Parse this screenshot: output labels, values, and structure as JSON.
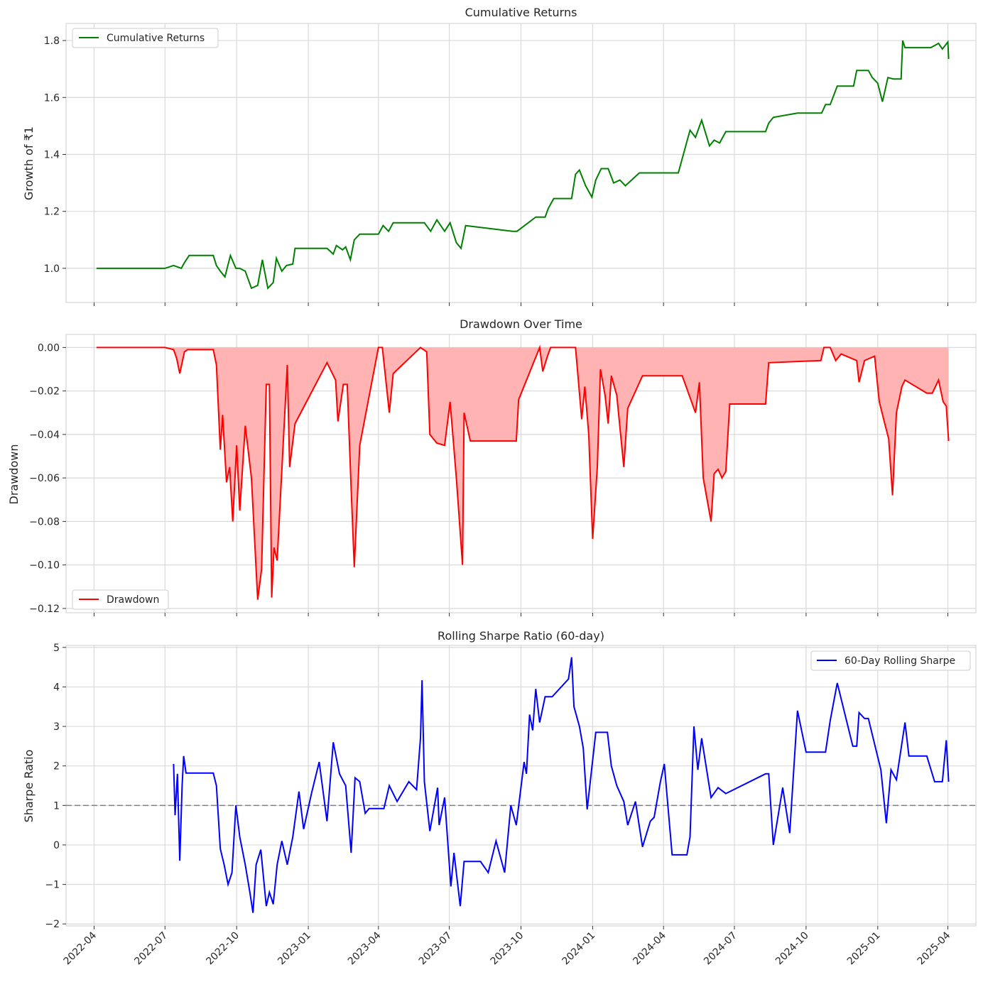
{
  "chart_data": [
    {
      "type": "line",
      "title": "Cumulative Returns",
      "xlabel": "",
      "ylabel": "Growth of ₹1",
      "ylim": [
        0.88,
        1.86
      ],
      "yticks": [
        "1.0",
        "1.2",
        "1.4",
        "1.6",
        "1.8"
      ],
      "grid": true,
      "legend_position": "upper left",
      "series": [
        {
          "name": "Cumulative Returns",
          "color": "#008000",
          "x": [
            "2022-04-04",
            "2022-07-01",
            "2022-07-12",
            "2022-07-22",
            "2022-07-26",
            "2022-08-01",
            "2022-09-01",
            "2022-09-05",
            "2022-09-10",
            "2022-09-16",
            "2022-09-23",
            "2022-09-30",
            "2022-10-05",
            "2022-10-12",
            "2022-10-20",
            "2022-10-28",
            "2022-11-03",
            "2022-11-10",
            "2022-11-17",
            "2022-11-21",
            "2022-11-28",
            "2022-12-04",
            "2022-12-12",
            "2022-12-15",
            "2023-01-25",
            "2023-02-02",
            "2023-02-06",
            "2023-02-14",
            "2023-02-18",
            "2023-02-24",
            "2023-03-01",
            "2023-03-08",
            "2023-03-15",
            "2023-04-01",
            "2023-04-07",
            "2023-04-14",
            "2023-04-20",
            "2023-05-30",
            "2023-06-07",
            "2023-06-15",
            "2023-06-25",
            "2023-07-02",
            "2023-07-10",
            "2023-07-16",
            "2023-07-22",
            "2023-09-20",
            "2023-09-26",
            "2023-10-20",
            "2023-11-01",
            "2023-11-05",
            "2023-11-12",
            "2023-12-05",
            "2023-12-10",
            "2023-12-15",
            "2023-12-23",
            "2023-12-31",
            "2024-01-05",
            "2024-01-12",
            "2024-01-21",
            "2024-01-28",
            "2024-02-05",
            "2024-02-12",
            "2024-02-20",
            "2024-03-01",
            "2024-04-20",
            "2024-05-05",
            "2024-05-12",
            "2024-05-20",
            "2024-05-30",
            "2024-06-05",
            "2024-06-12",
            "2024-06-20",
            "2024-06-30",
            "2024-08-10",
            "2024-08-14",
            "2024-08-20",
            "2024-09-20",
            "2024-10-21",
            "2024-10-26",
            "2024-11-01",
            "2024-11-10",
            "2024-12-01",
            "2024-12-05",
            "2024-12-20",
            "2024-12-25",
            "2025-01-01",
            "2025-01-07",
            "2025-01-14",
            "2025-01-21",
            "2025-01-31",
            "2025-02-02",
            "2025-02-05",
            "2025-03-10",
            "2025-03-20",
            "2025-03-25",
            "2025-04-01",
            "2025-04-02"
          ],
          "values": [
            1.0,
            1.0,
            1.01,
            1.0,
            1.02,
            1.045,
            1.045,
            1.01,
            0.99,
            0.97,
            1.045,
            1.0,
            1.0,
            0.99,
            0.93,
            0.94,
            1.03,
            0.93,
            0.95,
            1.035,
            0.99,
            1.01,
            1.015,
            1.07,
            1.07,
            1.05,
            1.08,
            1.065,
            1.075,
            1.03,
            1.1,
            1.12,
            1.12,
            1.12,
            1.15,
            1.13,
            1.16,
            1.16,
            1.13,
            1.17,
            1.13,
            1.16,
            1.09,
            1.07,
            1.15,
            1.13,
            1.13,
            1.18,
            1.18,
            1.21,
            1.245,
            1.245,
            1.33,
            1.345,
            1.29,
            1.25,
            1.31,
            1.35,
            1.35,
            1.3,
            1.31,
            1.29,
            1.31,
            1.335,
            1.335,
            1.485,
            1.46,
            1.52,
            1.43,
            1.45,
            1.44,
            1.48,
            1.48,
            1.48,
            1.51,
            1.53,
            1.545,
            1.545,
            1.575,
            1.575,
            1.64,
            1.64,
            1.695,
            1.695,
            1.67,
            1.65,
            1.585,
            1.67,
            1.665,
            1.665,
            1.8,
            1.775,
            1.775,
            1.79,
            1.77,
            1.795,
            1.735
          ]
        }
      ]
    },
    {
      "type": "area",
      "title": "Drawdown Over Time",
      "xlabel": "",
      "ylabel": "Drawdown",
      "ylim": [
        -0.122,
        0.006
      ],
      "yticks": [
        "0.00",
        "−0.02",
        "−0.04",
        "−0.06",
        "−0.08",
        "−0.10",
        "−0.12"
      ],
      "grid": true,
      "legend_position": "lower left",
      "series": [
        {
          "name": "Drawdown",
          "color": "#ff0000",
          "fill_color": "#ffb3b3",
          "x": [
            "2022-04-04",
            "2022-07-01",
            "2022-07-12",
            "2022-07-16",
            "2022-07-20",
            "2022-07-26",
            "2022-07-30",
            "2022-09-01",
            "2022-09-05",
            "2022-09-10",
            "2022-09-13",
            "2022-09-18",
            "2022-09-22",
            "2022-09-26",
            "2022-10-01",
            "2022-10-05",
            "2022-10-12",
            "2022-10-20",
            "2022-10-28",
            "2022-11-02",
            "2022-11-08",
            "2022-11-12",
            "2022-11-15",
            "2022-11-18",
            "2022-11-22",
            "2022-12-05",
            "2022-12-08",
            "2022-12-15",
            "2023-01-25",
            "2023-02-05",
            "2023-02-08",
            "2023-02-15",
            "2023-02-20",
            "2023-02-25",
            "2023-03-01",
            "2023-03-08",
            "2023-04-01",
            "2023-04-06",
            "2023-04-15",
            "2023-04-20",
            "2023-05-25",
            "2023-06-02",
            "2023-06-06",
            "2023-06-15",
            "2023-06-25",
            "2023-07-02",
            "2023-07-10",
            "2023-07-18",
            "2023-07-20",
            "2023-07-28",
            "2023-09-25",
            "2023-09-28",
            "2023-10-25",
            "2023-10-29",
            "2023-11-04",
            "2023-11-08",
            "2023-12-10",
            "2023-12-18",
            "2023-12-22",
            "2023-12-27",
            "2024-01-01",
            "2024-01-07",
            "2024-01-11",
            "2024-01-17",
            "2024-01-21",
            "2024-01-25",
            "2024-02-01",
            "2024-02-10",
            "2024-02-15",
            "2024-03-05",
            "2024-04-25",
            "2024-05-12",
            "2024-05-17",
            "2024-05-22",
            "2024-06-01",
            "2024-06-05",
            "2024-06-10",
            "2024-06-15",
            "2024-06-20",
            "2024-06-25",
            "2024-08-10",
            "2024-08-14",
            "2024-10-20",
            "2024-10-24",
            "2024-11-01",
            "2024-11-08",
            "2024-11-15",
            "2024-12-05",
            "2024-12-08",
            "2024-12-15",
            "2024-12-28",
            "2025-01-03",
            "2025-01-10",
            "2025-01-15",
            "2025-01-20",
            "2025-01-25",
            "2025-02-01",
            "2025-02-05",
            "2025-03-05",
            "2025-03-12",
            "2025-03-20",
            "2025-03-26",
            "2025-03-30",
            "2025-04-02"
          ],
          "values": [
            0.0,
            0.0,
            -0.001,
            -0.005,
            -0.012,
            -0.002,
            -0.001,
            -0.001,
            -0.008,
            -0.047,
            -0.031,
            -0.062,
            -0.055,
            -0.08,
            -0.045,
            -0.075,
            -0.036,
            -0.06,
            -0.116,
            -0.102,
            -0.017,
            -0.017,
            -0.115,
            -0.092,
            -0.098,
            -0.008,
            -0.055,
            -0.035,
            -0.007,
            -0.015,
            -0.034,
            -0.017,
            -0.017,
            -0.065,
            -0.101,
            -0.045,
            0.0,
            0.0,
            -0.03,
            -0.012,
            0.0,
            -0.002,
            -0.04,
            -0.044,
            -0.045,
            -0.025,
            -0.06,
            -0.1,
            -0.03,
            -0.043,
            -0.043,
            -0.024,
            0.0,
            -0.011,
            -0.004,
            0.0,
            0.0,
            -0.033,
            -0.018,
            -0.04,
            -0.088,
            -0.055,
            -0.01,
            -0.022,
            -0.035,
            -0.013,
            -0.022,
            -0.055,
            -0.028,
            -0.013,
            -0.013,
            -0.03,
            -0.016,
            -0.06,
            -0.08,
            -0.058,
            -0.056,
            -0.06,
            -0.057,
            -0.026,
            -0.026,
            -0.007,
            -0.006,
            0.0,
            0.0,
            -0.006,
            -0.003,
            -0.006,
            -0.016,
            -0.006,
            -0.004,
            -0.025,
            -0.035,
            -0.042,
            -0.068,
            -0.03,
            -0.018,
            -0.015,
            -0.021,
            -0.021,
            -0.015,
            -0.025,
            -0.027,
            -0.043
          ]
        }
      ]
    },
    {
      "type": "line",
      "title": "Rolling Sharpe Ratio (60-day)",
      "xlabel": "",
      "ylabel": "Sharpe Ratio",
      "ylim": [
        -2.05,
        5.05
      ],
      "yticks": [
        "−2",
        "−1",
        "0",
        "1",
        "2",
        "3",
        "4",
        "5"
      ],
      "xticks": [
        "2022-04",
        "2022-07",
        "2022-10",
        "2023-01",
        "2023-04",
        "2023-07",
        "2023-10",
        "2024-01",
        "2024-04",
        "2024-07",
        "2024-10",
        "2025-01",
        "2025-04"
      ],
      "grid": true,
      "legend_position": "upper right",
      "reference_line": {
        "y": 1,
        "style": "dashed",
        "color": "#808080"
      },
      "series": [
        {
          "name": "60-Day Rolling Sharpe",
          "color": "#0000ff",
          "x": [
            "2022-07-12",
            "2022-07-14",
            "2022-07-17",
            "2022-07-20",
            "2022-07-23",
            "2022-07-25",
            "2022-07-28",
            "2022-09-01",
            "2022-09-05",
            "2022-09-10",
            "2022-09-15",
            "2022-09-20",
            "2022-09-25",
            "2022-09-30",
            "2022-10-05",
            "2022-10-12",
            "2022-10-18",
            "2022-10-22",
            "2022-10-26",
            "2022-11-01",
            "2022-11-08",
            "2022-11-12",
            "2022-11-17",
            "2022-11-22",
            "2022-11-28",
            "2022-12-05",
            "2022-12-12",
            "2022-12-20",
            "2022-12-26",
            "2023-01-05",
            "2023-01-15",
            "2023-01-25",
            "2023-02-02",
            "2023-02-10",
            "2023-02-18",
            "2023-02-25",
            "2023-03-02",
            "2023-03-08",
            "2023-03-15",
            "2023-03-20",
            "2023-04-08",
            "2023-04-15",
            "2023-04-25",
            "2023-05-10",
            "2023-05-20",
            "2023-05-25",
            "2023-05-27",
            "2023-05-30",
            "2023-06-06",
            "2023-06-16",
            "2023-06-18",
            "2023-06-25",
            "2023-07-03",
            "2023-07-07",
            "2023-07-15",
            "2023-07-20",
            "2023-08-10",
            "2023-08-20",
            "2023-08-30",
            "2023-09-10",
            "2023-09-18",
            "2023-09-25",
            "2023-10-05",
            "2023-10-08",
            "2023-10-12",
            "2023-10-16",
            "2023-10-20",
            "2023-10-25",
            "2023-11-01",
            "2023-11-05",
            "2023-11-10",
            "2023-12-01",
            "2023-12-05",
            "2023-12-08",
            "2023-12-15",
            "2023-12-20",
            "2023-12-25",
            "2024-01-05",
            "2024-01-20",
            "2024-01-25",
            "2024-02-01",
            "2024-02-10",
            "2024-02-15",
            "2024-02-25",
            "2024-03-05",
            "2024-03-15",
            "2024-03-20",
            "2024-03-28",
            "2024-04-02",
            "2024-04-12",
            "2024-05-01",
            "2024-05-05",
            "2024-05-10",
            "2024-05-15",
            "2024-05-20",
            "2024-06-01",
            "2024-06-10",
            "2024-06-20",
            "2024-08-10",
            "2024-08-14",
            "2024-08-20",
            "2024-09-01",
            "2024-09-10",
            "2024-09-20",
            "2024-10-01",
            "2024-10-26",
            "2024-11-01",
            "2024-11-10",
            "2024-11-30",
            "2024-12-05",
            "2024-12-08",
            "2024-12-15",
            "2024-12-20",
            "2025-01-05",
            "2025-01-12",
            "2025-01-18",
            "2025-01-25",
            "2025-02-05",
            "2025-02-10",
            "2025-03-05",
            "2025-03-15",
            "2025-03-25",
            "2025-03-30",
            "2025-04-02"
          ],
          "values": [
            2.05,
            0.75,
            1.8,
            -0.4,
            1.5,
            2.25,
            1.82,
            1.82,
            1.5,
            -0.1,
            -0.5,
            -1.0,
            -0.7,
            1.0,
            0.2,
            -0.5,
            -1.2,
            -1.72,
            -0.5,
            -0.12,
            -1.55,
            -1.2,
            -1.5,
            -0.5,
            0.1,
            -0.5,
            0.2,
            1.35,
            0.4,
            1.3,
            2.1,
            0.6,
            2.6,
            1.8,
            1.5,
            -0.2,
            1.7,
            1.6,
            0.8,
            0.92,
            0.92,
            1.5,
            1.1,
            1.6,
            1.4,
            2.7,
            4.17,
            1.6,
            0.35,
            1.45,
            0.5,
            1.2,
            -1.05,
            -0.2,
            -1.55,
            -0.42,
            -0.42,
            -0.7,
            0.1,
            -0.7,
            1.0,
            0.5,
            2.1,
            1.8,
            3.3,
            2.9,
            3.95,
            3.1,
            3.75,
            3.75,
            3.75,
            4.2,
            4.75,
            3.5,
            3.0,
            2.45,
            0.9,
            2.85,
            2.85,
            2.0,
            1.5,
            1.1,
            0.5,
            1.1,
            -0.05,
            0.6,
            0.7,
            1.6,
            2.05,
            -0.25,
            -0.25,
            0.2,
            3.0,
            1.9,
            2.7,
            1.2,
            1.45,
            1.3,
            1.8,
            1.8,
            0.0,
            1.45,
            0.3,
            3.4,
            2.35,
            2.35,
            3.15,
            4.1,
            2.5,
            2.5,
            3.35,
            3.2,
            3.2,
            1.9,
            0.55,
            1.9,
            1.65,
            3.1,
            2.25,
            2.25,
            1.6,
            1.6,
            2.65,
            1.6
          ]
        }
      ]
    }
  ]
}
